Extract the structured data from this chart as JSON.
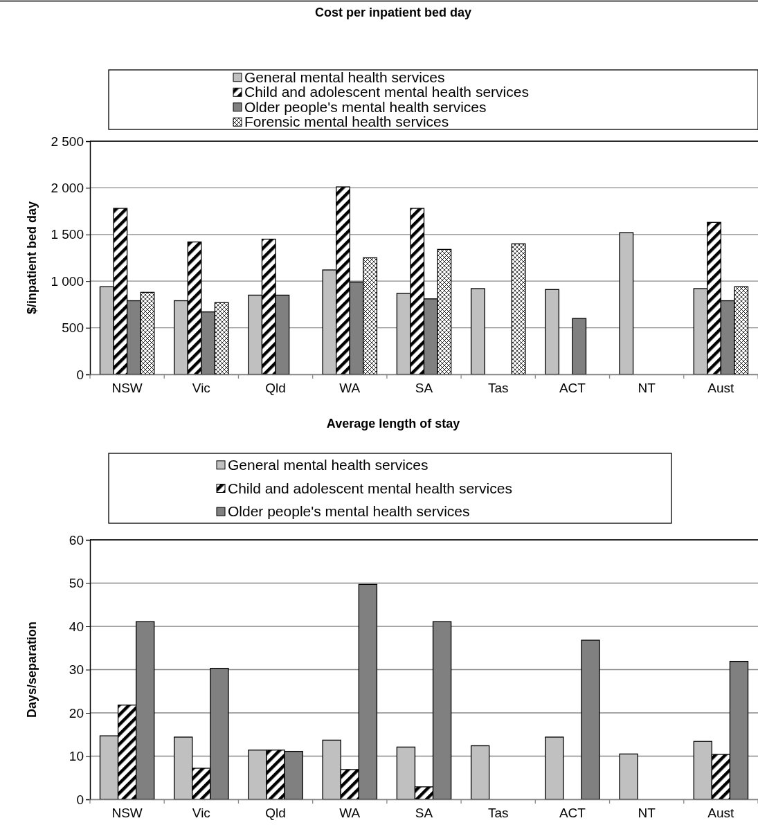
{
  "chart_data": [
    {
      "type": "bar",
      "title": "Cost per inpatient bed day",
      "ylabel": "$/inpatient bed day",
      "categories": [
        "NSW",
        "Vic",
        "Qld",
        "WA",
        "SA",
        "Tas",
        "ACT",
        "NT",
        "Aust"
      ],
      "series": [
        {
          "name": "General mental health services",
          "color": "#c0c0c0",
          "values": [
            940,
            790,
            850,
            1120,
            870,
            920,
            910,
            1520,
            920
          ]
        },
        {
          "name": "Child and adolescent mental health services",
          "color": "#000000",
          "values": [
            1780,
            1420,
            1450,
            2010,
            1780,
            null,
            null,
            null,
            1630
          ]
        },
        {
          "name": "Older people's mental health services",
          "color": "#808080",
          "values": [
            790,
            670,
            850,
            990,
            810,
            null,
            600,
            null,
            790
          ]
        },
        {
          "name": "Forensic mental health services",
          "color": "#000000",
          "values": [
            880,
            770,
            null,
            1250,
            1340,
            1400,
            null,
            null,
            940
          ]
        }
      ],
      "ylim": [
        0,
        2500
      ],
      "yticks": [
        {
          "value": 0,
          "label": "0"
        },
        {
          "value": 500,
          "label": "500"
        },
        {
          "value": 1000,
          "label": "1 000"
        },
        {
          "value": 1500,
          "label": "1 500"
        },
        {
          "value": 2000,
          "label": "2 000"
        },
        {
          "value": 2500,
          "label": "2 500"
        }
      ],
      "grid": "y",
      "legend": "top"
    },
    {
      "type": "bar",
      "title": "Average length of stay",
      "ylabel": "Days/separation",
      "categories": [
        "NSW",
        "Vic",
        "Qld",
        "WA",
        "SA",
        "Tas",
        "ACT",
        "NT",
        "Aust"
      ],
      "series": [
        {
          "name": "General mental health services",
          "color": "#c0c0c0",
          "values": [
            14.7,
            14.4,
            11.4,
            13.7,
            12.1,
            12.4,
            14.4,
            10.5,
            13.4
          ]
        },
        {
          "name": "Child and adolescent mental health services",
          "color": "#000000",
          "values": [
            21.8,
            7.2,
            11.4,
            6.9,
            2.9,
            null,
            null,
            null,
            10.4
          ]
        },
        {
          "name": "Older people's mental health services",
          "color": "#808080",
          "values": [
            41.1,
            30.3,
            11.1,
            49.7,
            41.1,
            null,
            36.8,
            null,
            31.9
          ]
        }
      ],
      "ylim": [
        0,
        60
      ],
      "yticks": [
        0,
        10,
        20,
        30,
        40,
        50,
        60
      ],
      "grid": "y",
      "legend": "top"
    }
  ]
}
